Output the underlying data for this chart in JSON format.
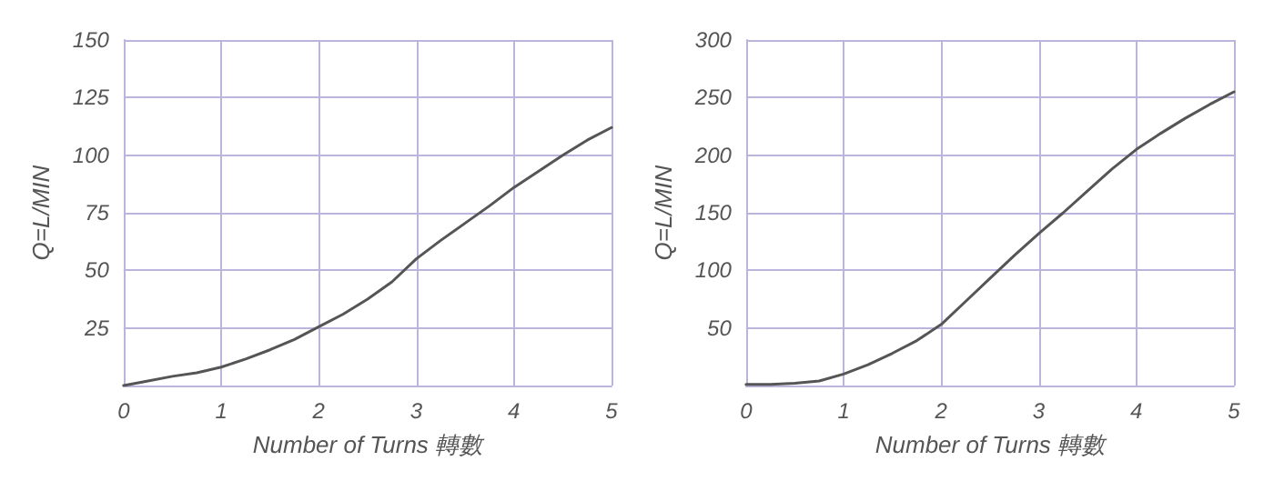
{
  "chart_data": [
    {
      "type": "line",
      "xlabel": "Number of Turns 轉數",
      "ylabel": "Q=L/MIN",
      "x": [
        0,
        0.25,
        0.5,
        0.75,
        1,
        1.25,
        1.5,
        1.75,
        2,
        2.25,
        2.5,
        2.75,
        3,
        3.25,
        3.5,
        3.75,
        4,
        4.25,
        4.5,
        4.75,
        5
      ],
      "series": [
        {
          "color": "#555555",
          "values": [
            0,
            2,
            4,
            5.5,
            8,
            11.5,
            15.5,
            20,
            25.5,
            31,
            37.5,
            45,
            55,
            63,
            70.5,
            78,
            86,
            93,
            100,
            106.5,
            112
          ]
        }
      ],
      "xlim": [
        0,
        5
      ],
      "xticks": [
        0,
        1,
        2,
        3,
        4,
        5
      ],
      "ylim": [
        0,
        150
      ],
      "yticks": [
        {
          "value": 0,
          "label": null
        },
        25,
        50,
        75,
        100,
        125,
        150
      ],
      "grid": true,
      "marker": "none",
      "line_style": "solid"
    },
    {
      "type": "line",
      "xlabel": "Number of Turns 轉數",
      "ylabel": "Q=L/MIN",
      "x": [
        0,
        0.25,
        0.5,
        0.75,
        1,
        1.25,
        1.5,
        1.75,
        2,
        2.25,
        2.5,
        2.75,
        3,
        3.25,
        3.5,
        3.75,
        4,
        4.25,
        4.5,
        4.75,
        5
      ],
      "series": [
        {
          "color": "#555555",
          "values": [
            1,
            1,
            2,
            4,
            10,
            18,
            28,
            39,
            53,
            73,
            93,
            113,
            132,
            150,
            169,
            188,
            205,
            219,
            232,
            244,
            255
          ]
        }
      ],
      "xlim": [
        0,
        5
      ],
      "xticks": [
        0,
        1,
        2,
        3,
        4,
        5
      ],
      "ylim": [
        0,
        300
      ],
      "yticks": [
        {
          "value": 0,
          "label": null
        },
        50,
        100,
        150,
        200,
        250,
        300
      ],
      "grid": true,
      "marker": "none",
      "line_style": "solid"
    }
  ]
}
